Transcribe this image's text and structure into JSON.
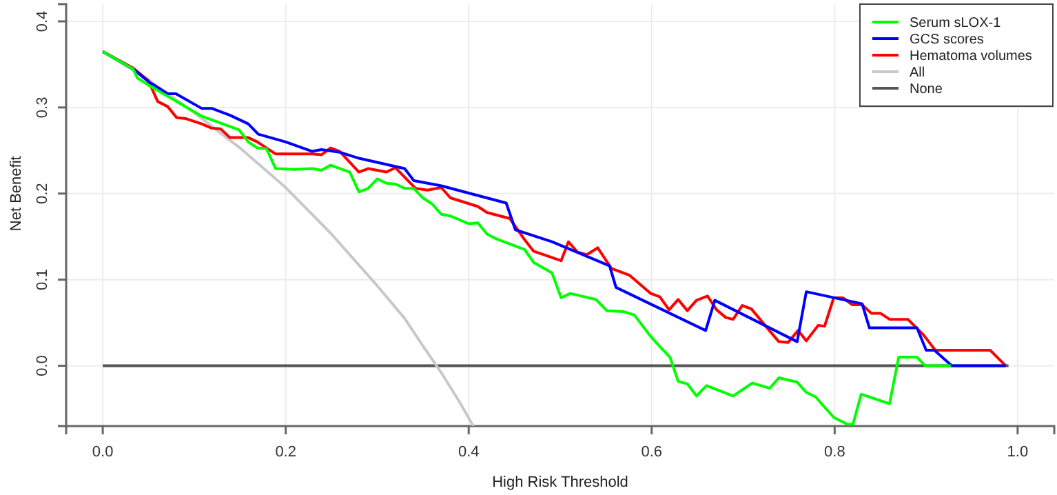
{
  "chart_data": {
    "type": "line",
    "xlabel": "High Risk Threshold",
    "ylabel": "Net Benefit",
    "xlim": [
      -0.04,
      1.04
    ],
    "ylim": [
      -0.07,
      0.42
    ],
    "xticks": [
      {
        "value": 0,
        "label": "0.0"
      },
      {
        "value": 0.2,
        "label": "0.2"
      },
      {
        "value": 0.4,
        "label": "0.4"
      },
      {
        "value": 0.6,
        "label": "0.6"
      },
      {
        "value": 0.8,
        "label": "0.8"
      },
      {
        "value": 1,
        "label": "1.0"
      }
    ],
    "yticks": [
      {
        "value": 0,
        "label": "0.0"
      },
      {
        "value": 0.1,
        "label": "0.1"
      },
      {
        "value": 0.2,
        "label": "0.2"
      },
      {
        "value": 0.3,
        "label": "0.3"
      },
      {
        "value": 0.4,
        "label": "0.4"
      }
    ],
    "grid": true,
    "legend": "top right",
    "series": [
      {
        "name": "Serum sLOX-1",
        "color": "#00ff00",
        "x": [
          0,
          0.033,
          0.038,
          0.05,
          0.108,
          0.149,
          0.159,
          0.169,
          0.179,
          0.189,
          0.209,
          0.229,
          0.239,
          0.249,
          0.27,
          0.28,
          0.29,
          0.3,
          0.31,
          0.32,
          0.33,
          0.34,
          0.35,
          0.36,
          0.37,
          0.38,
          0.4,
          0.41,
          0.42,
          0.431,
          0.461,
          0.471,
          0.491,
          0.501,
          0.511,
          0.539,
          0.551,
          0.569,
          0.581,
          0.599,
          0.611,
          0.62,
          0.629,
          0.639,
          0.649,
          0.66,
          0.689,
          0.71,
          0.729,
          0.739,
          0.759,
          0.769,
          0.779,
          0.799,
          0.814,
          0.82,
          0.829,
          0.86,
          0.87,
          0.89,
          0.899,
          0.927
        ],
        "values": [
          0.365,
          0.345,
          0.334,
          0.326,
          0.29,
          0.274,
          0.26,
          0.253,
          0.252,
          0.229,
          0.228,
          0.229,
          0.227,
          0.233,
          0.225,
          0.202,
          0.206,
          0.217,
          0.212,
          0.211,
          0.206,
          0.206,
          0.195,
          0.188,
          0.176,
          0.174,
          0.165,
          0.166,
          0.153,
          0.147,
          0.135,
          0.12,
          0.108,
          0.079,
          0.084,
          0.077,
          0.064,
          0.063,
          0.059,
          0.034,
          0.02,
          0.01,
          -0.018,
          -0.021,
          -0.035,
          -0.023,
          -0.035,
          -0.02,
          -0.026,
          -0.014,
          -0.019,
          -0.031,
          -0.036,
          -0.06,
          -0.068,
          -0.068,
          -0.033,
          -0.044,
          0.01,
          0.01,
          0,
          0
        ]
      },
      {
        "name": "GCS scores",
        "color": "#0000ff",
        "x": [
          0,
          0.033,
          0.05,
          0.071,
          0.08,
          0.108,
          0.119,
          0.139,
          0.159,
          0.17,
          0.2,
          0.229,
          0.239,
          0.259,
          0.28,
          0.33,
          0.34,
          0.37,
          0.441,
          0.451,
          0.491,
          0.554,
          0.561,
          0.659,
          0.669,
          0.759,
          0.769,
          0.83,
          0.838,
          0.89,
          0.9,
          0.909,
          0.928,
          0.987
        ],
        "values": [
          0.365,
          0.345,
          0.33,
          0.316,
          0.316,
          0.299,
          0.299,
          0.291,
          0.281,
          0.269,
          0.26,
          0.249,
          0.251,
          0.248,
          0.241,
          0.229,
          0.215,
          0.209,
          0.189,
          0.158,
          0.144,
          0.116,
          0.091,
          0.041,
          0.076,
          0.028,
          0.086,
          0.072,
          0.044,
          0.044,
          0.018,
          0.018,
          0,
          0
        ]
      },
      {
        "name": "Hematoma volumes",
        "color": "#ff0000",
        "x": [
          0,
          0.033,
          0.05,
          0.06,
          0.071,
          0.081,
          0.091,
          0.108,
          0.119,
          0.129,
          0.139,
          0.159,
          0.169,
          0.189,
          0.209,
          0.229,
          0.239,
          0.249,
          0.259,
          0.28,
          0.29,
          0.31,
          0.32,
          0.342,
          0.355,
          0.37,
          0.38,
          0.41,
          0.42,
          0.445,
          0.46,
          0.471,
          0.501,
          0.509,
          0.519,
          0.529,
          0.541,
          0.556,
          0.576,
          0.599,
          0.609,
          0.619,
          0.629,
          0.639,
          0.649,
          0.661,
          0.671,
          0.681,
          0.689,
          0.699,
          0.709,
          0.727,
          0.739,
          0.749,
          0.76,
          0.769,
          0.782,
          0.789,
          0.799,
          0.809,
          0.819,
          0.83,
          0.84,
          0.85,
          0.86,
          0.88,
          0.897,
          0.91,
          0.97,
          0.987
        ],
        "values": [
          0.365,
          0.346,
          0.331,
          0.307,
          0.301,
          0.288,
          0.287,
          0.281,
          0.276,
          0.275,
          0.265,
          0.265,
          0.26,
          0.246,
          0.246,
          0.246,
          0.245,
          0.253,
          0.249,
          0.225,
          0.229,
          0.225,
          0.23,
          0.206,
          0.204,
          0.207,
          0.195,
          0.185,
          0.178,
          0.171,
          0.148,
          0.133,
          0.122,
          0.144,
          0.132,
          0.129,
          0.137,
          0.113,
          0.105,
          0.084,
          0.08,
          0.065,
          0.077,
          0.064,
          0.076,
          0.081,
          0.065,
          0.056,
          0.054,
          0.07,
          0.066,
          0.043,
          0.028,
          0.027,
          0.041,
          0.029,
          0.047,
          0.046,
          0.079,
          0.079,
          0.071,
          0.071,
          0.061,
          0.061,
          0.054,
          0.054,
          0.036,
          0.018,
          0.018,
          0
        ]
      },
      {
        "name": "All",
        "color": "#c8c8c8",
        "x": [
          0,
          0.05,
          0.1,
          0.15,
          0.2,
          0.25,
          0.3,
          0.33,
          0.35,
          0.37,
          0.39,
          0.405
        ],
        "values": [
          0.365,
          0.332,
          0.294,
          0.253,
          0.207,
          0.153,
          0.093,
          0.055,
          0.023,
          -0.008,
          -0.042,
          -0.07
        ]
      },
      {
        "name": "None",
        "color": "#555555",
        "x": [
          0,
          0.99
        ],
        "values": [
          0,
          0
        ]
      }
    ]
  }
}
